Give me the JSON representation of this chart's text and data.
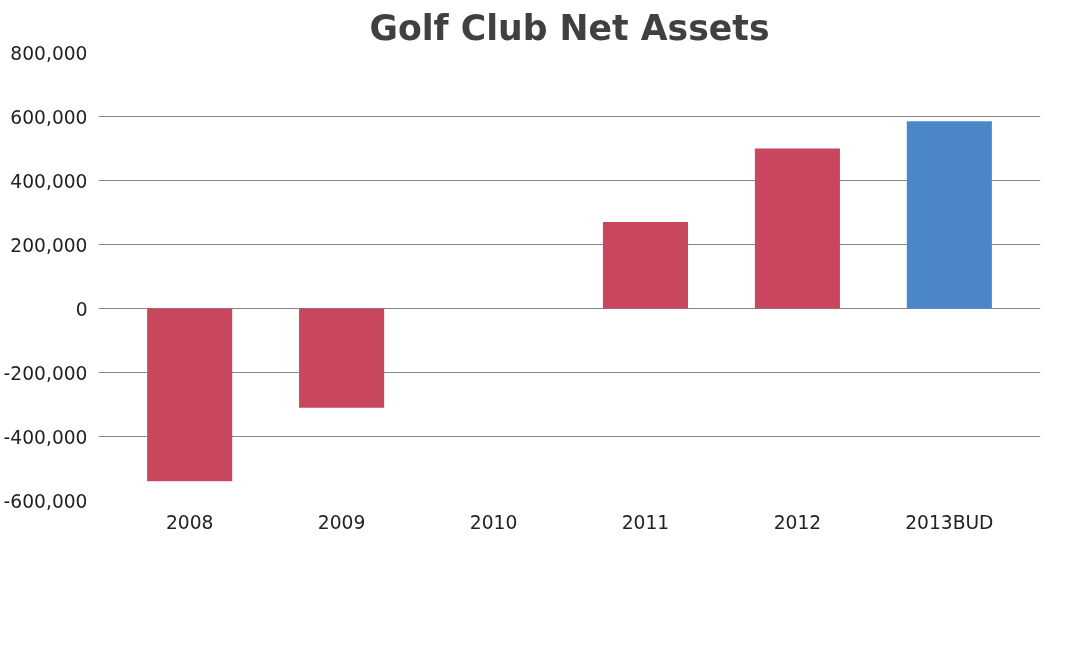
{
  "chart_data": {
    "type": "bar",
    "title": "Golf Club Net Assets",
    "categories": [
      "2008",
      "2009",
      "2010",
      "2011",
      "2012",
      "2013BUD"
    ],
    "values": [
      -540000,
      -310000,
      0,
      270000,
      500000,
      585000
    ],
    "colors": [
      "#c8475e",
      "#c8475e",
      "#c8475e",
      "#c8475e",
      "#c8475e",
      "#4a86c8"
    ],
    "ylim": [
      -600000,
      800000
    ],
    "yticks": [
      {
        "value": -600000,
        "label": "-600,000"
      },
      {
        "value": -400000,
        "label": "-400,000"
      },
      {
        "value": -200000,
        "label": "-200,000"
      },
      {
        "value": 0,
        "label": "0"
      },
      {
        "value": 200000,
        "label": "200,000"
      },
      {
        "value": 400000,
        "label": "400,000"
      },
      {
        "value": 600000,
        "label": "600,000"
      },
      {
        "value": 800000,
        "label": "800,000"
      }
    ],
    "grid": "y"
  }
}
